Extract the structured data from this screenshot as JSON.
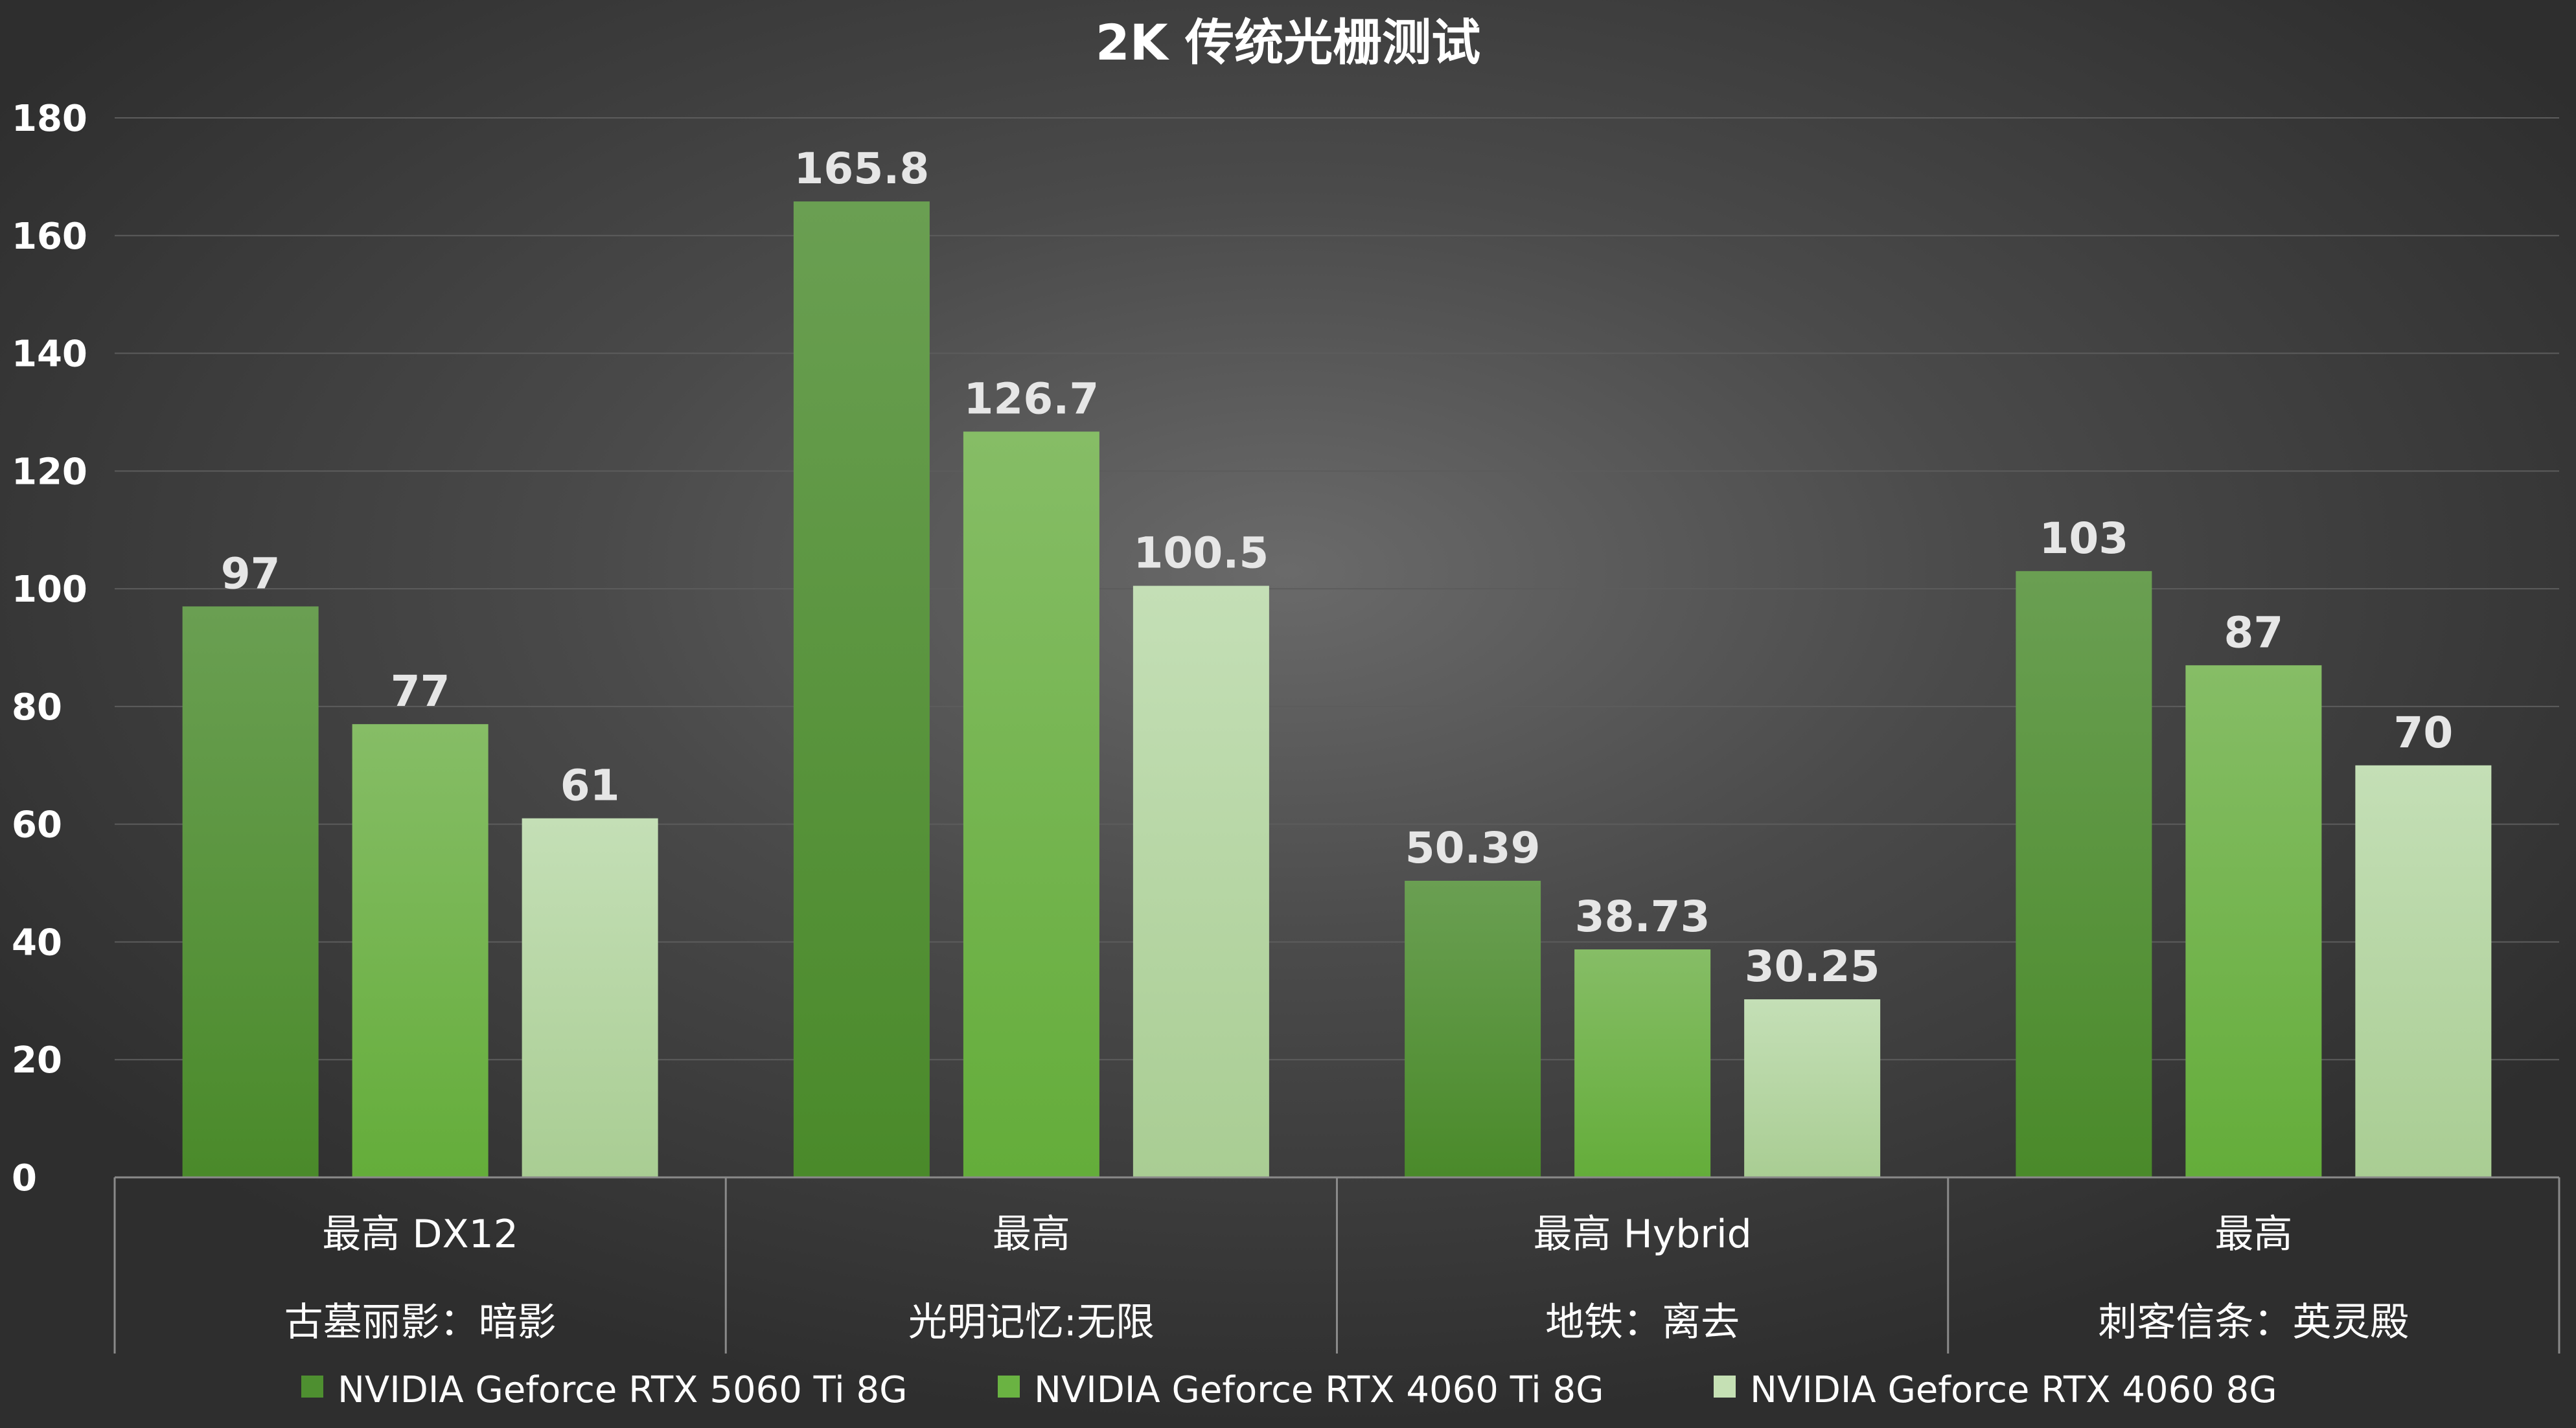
{
  "chart_data": {
    "type": "bar",
    "title": "2K 传统光栅测试",
    "categories": [
      {
        "setting": "最高 DX12",
        "game": "古墓丽影：暗影"
      },
      {
        "setting": "最高",
        "game": "光明记忆:无限"
      },
      {
        "setting": "最高 Hybrid",
        "game": "地铁：离去"
      },
      {
        "setting": "最高",
        "game": "刺客信条：英灵殿"
      }
    ],
    "series": [
      {
        "name": "NVIDIA Geforce RTX 5060 Ti 8G",
        "values": [
          97,
          165.8,
          50.39,
          103
        ],
        "labels": [
          "97",
          "165.8",
          "50.39",
          "103"
        ],
        "color_top": "#6a9f52",
        "color_bottom": "#4a8a2a",
        "legend_color": "#4e8f30"
      },
      {
        "name": "NVIDIA Geforce RTX 4060 Ti 8G",
        "values": [
          77,
          126.7,
          38.73,
          87
        ],
        "labels": [
          "77",
          "126.7",
          "38.73",
          "87"
        ],
        "color_top": "#86bd66",
        "color_bottom": "#64ad3a",
        "legend_color": "#6ab342"
      },
      {
        "name": "NVIDIA Geforce RTX 4060 8G",
        "values": [
          61,
          100.5,
          30.25,
          70
        ],
        "labels": [
          "61",
          "100.5",
          "30.25",
          "70"
        ],
        "color_top": "#c4dfb6",
        "color_bottom": "#a9cd93",
        "legend_color": "#c5e0b4"
      }
    ],
    "ylim": [
      0,
      180
    ],
    "yticks": [
      "0",
      "20",
      "40",
      "60",
      "80",
      "100",
      "120",
      "140",
      "160",
      "180"
    ],
    "grid": true,
    "legend_position": "bottom"
  }
}
